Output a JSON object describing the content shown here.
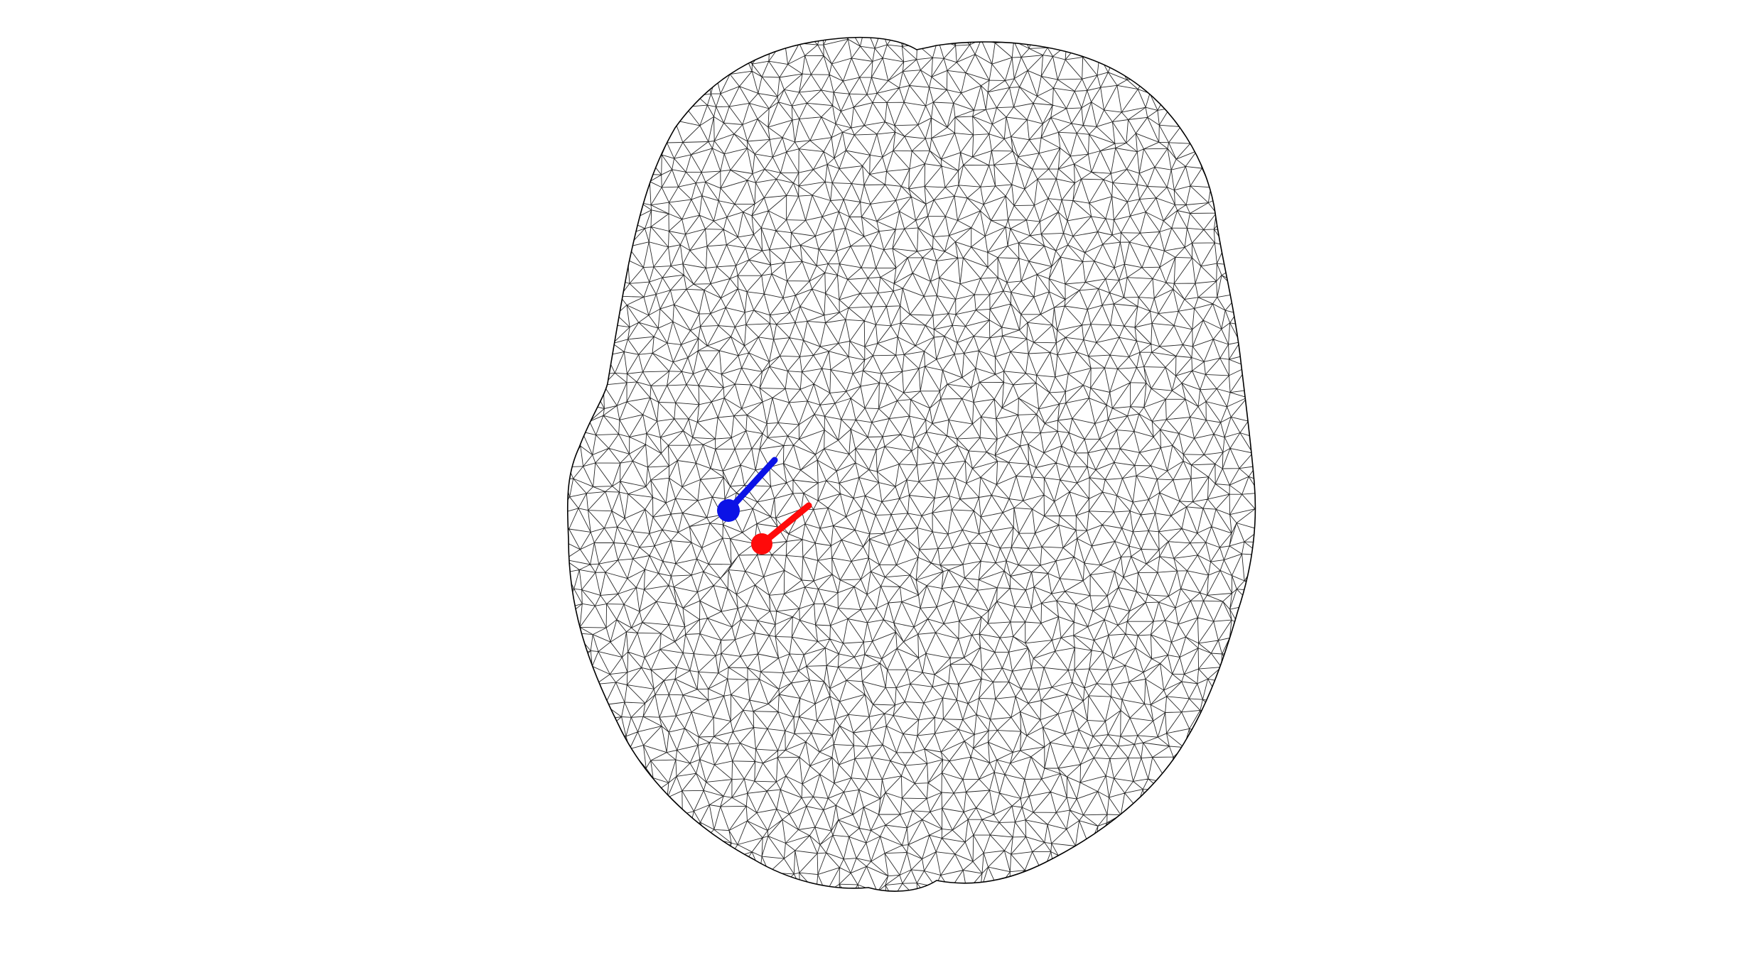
{
  "scene": {
    "subject": "head-surface-wireframe-top-view",
    "background_color": "#ffffff",
    "mesh_color": "#000000",
    "dipoles": [
      {
        "id": "dipole-1",
        "color": "#0b12e6"
      },
      {
        "id": "dipole-2",
        "color": "#ff0a0a"
      }
    ]
  }
}
